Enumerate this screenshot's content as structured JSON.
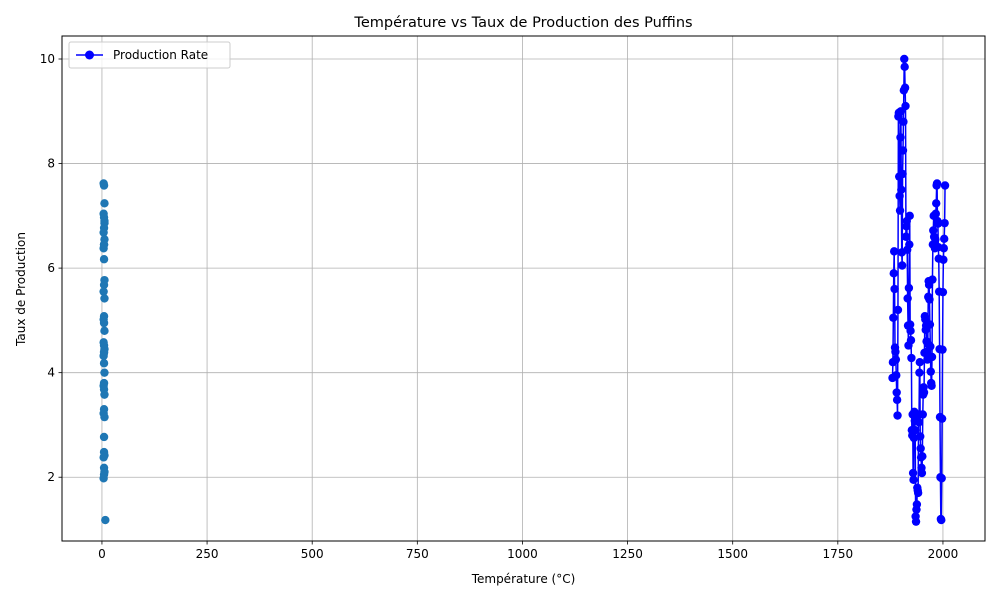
{
  "chart_data": {
    "type": "scatter",
    "title": "Température vs Taux de Production des Puffins",
    "xlabel": "Température (°C)",
    "ylabel": "Taux de Production",
    "xlim": [
      -95,
      2100
    ],
    "ylim": [
      0.78,
      10.44
    ],
    "xticks": [
      0,
      250,
      500,
      750,
      1000,
      1250,
      1500,
      1750,
      2000
    ],
    "yticks": [
      2,
      4,
      6,
      8,
      10
    ],
    "grid": true,
    "legend_position": "top-left",
    "colors": {
      "scatter": "#1f77b4",
      "line": "#0000ff"
    },
    "series": [
      {
        "kind": "scatter",
        "color": "#1f77b4",
        "x": [
          4,
          5,
          6,
          4,
          5,
          6,
          5,
          4,
          6,
          5,
          4,
          5,
          6,
          5,
          4,
          6,
          5,
          4,
          5,
          6,
          4,
          5,
          6,
          5,
          4,
          5,
          6,
          5,
          4,
          5,
          6,
          5,
          4,
          6,
          5,
          5,
          6,
          4,
          5,
          6,
          5,
          4,
          5,
          6,
          5,
          8
        ],
        "y": [
          7.62,
          7.58,
          7.24,
          7.04,
          6.97,
          6.86,
          6.77,
          6.68,
          6.55,
          6.45,
          6.38,
          6.17,
          5.77,
          5.68,
          5.55,
          5.42,
          5.08,
          5.02,
          4.95,
          4.8,
          4.58,
          4.52,
          4.45,
          4.38,
          4.32,
          4.18,
          4.0,
          3.8,
          3.75,
          3.68,
          3.58,
          3.3,
          3.22,
          3.15,
          2.77,
          2.48,
          2.42,
          2.38,
          2.18,
          2.1,
          2.05,
          1.98,
          6.45,
          6.9,
          4.4,
          1.18
        ]
      },
      {
        "kind": "line",
        "name": "Production Rate",
        "color": "#0000ff",
        "x": [
          1880,
          1881,
          1882,
          1883,
          1884,
          1885,
          1886,
          1887,
          1888,
          1889,
          1890,
          1891,
          1892,
          1893,
          1894,
          1895,
          1896,
          1897,
          1898,
          1899,
          1900,
          1901,
          1902,
          1903,
          1904,
          1905,
          1906,
          1907,
          1908,
          1909,
          1910,
          1911,
          1912,
          1913,
          1914,
          1915,
          1916,
          1917,
          1918,
          1919,
          1920,
          1921,
          1922,
          1923,
          1924,
          1925,
          1926,
          1927,
          1928,
          1929,
          1930,
          1931,
          1932,
          1933,
          1934,
          1935,
          1936,
          1937,
          1938,
          1939,
          1940,
          1941,
          1942,
          1943,
          1944,
          1945,
          1946,
          1947,
          1948,
          1949,
          1950,
          1951,
          1952,
          1953,
          1954,
          1955,
          1956,
          1957,
          1958,
          1959,
          1960,
          1961,
          1962,
          1963,
          1964,
          1965,
          1966,
          1967,
          1968,
          1969,
          1970,
          1971,
          1972,
          1973,
          1974,
          1975,
          1976,
          1977,
          1978,
          1979,
          1980,
          1981,
          1982,
          1983,
          1984,
          1985,
          1986,
          1987,
          1988,
          1989,
          1990,
          1991,
          1992,
          1993,
          1994,
          1995,
          1996,
          1997,
          1998,
          1999,
          2000,
          2001,
          2002,
          2003,
          2004,
          2005
        ],
        "y": [
          3.9,
          4.2,
          5.05,
          5.9,
          6.32,
          5.6,
          4.48,
          4.4,
          4.25,
          3.95,
          3.62,
          3.48,
          3.18,
          5.2,
          8.9,
          8.97,
          7.75,
          7.38,
          7.1,
          8.5,
          9.0,
          7.5,
          6.3,
          6.05,
          7.8,
          8.25,
          8.8,
          9.4,
          10.0,
          9.85,
          9.45,
          9.1,
          6.6,
          6.8,
          6.9,
          6.35,
          5.42,
          4.9,
          4.52,
          5.62,
          6.45,
          7.0,
          4.92,
          4.8,
          4.62,
          4.28,
          2.9,
          2.8,
          3.2,
          2.08,
          1.95,
          2.75,
          3.25,
          3.08,
          2.9,
          1.25,
          1.15,
          1.38,
          1.48,
          1.8,
          1.75,
          1.7,
          3.2,
          3.05,
          4.0,
          4.2,
          2.78,
          2.55,
          2.38,
          2.18,
          2.08,
          2.4,
          3.2,
          3.58,
          3.72,
          3.62,
          4.38,
          5.08,
          5.02,
          4.82,
          4.9,
          4.6,
          4.4,
          4.25,
          4.55,
          5.45,
          5.75,
          5.68,
          5.4,
          4.92,
          4.5,
          4.02,
          3.8,
          3.75,
          4.3,
          5.78,
          6.45,
          6.72,
          7.0,
          6.6,
          6.45,
          6.38,
          6.55,
          7.04,
          7.24,
          7.58,
          7.62,
          6.9,
          6.85,
          6.4,
          6.18,
          5.55,
          4.45,
          3.15,
          2.0,
          1.2,
          1.18,
          1.98,
          3.12,
          4.44,
          5.54,
          6.16,
          6.38,
          6.56,
          6.86,
          7.58
        ]
      }
    ]
  }
}
